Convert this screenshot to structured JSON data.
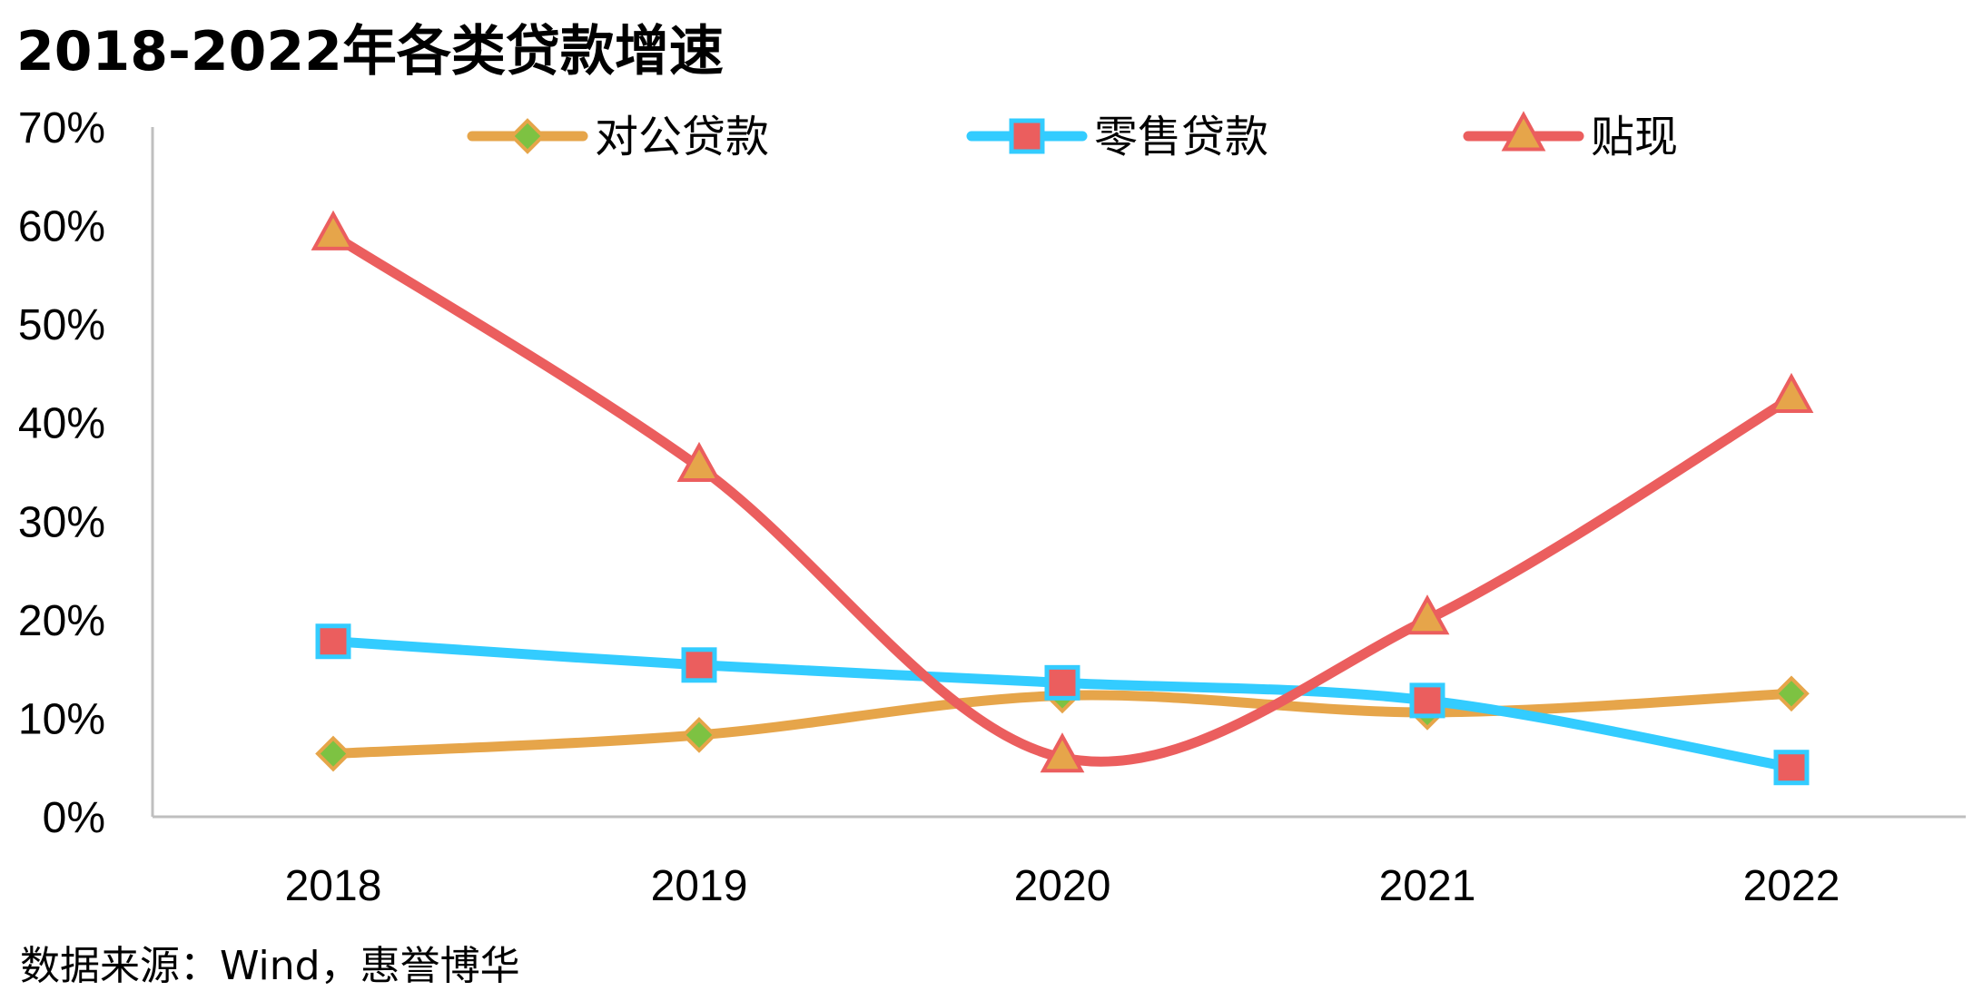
{
  "chart_data": {
    "type": "line",
    "title": "2018-2022年各类贷款增速",
    "categories": [
      "2018",
      "2019",
      "2020",
      "2021",
      "2022"
    ],
    "ylim": [
      0,
      0.7
    ],
    "yticks": [
      "0%",
      "10%",
      "20%",
      "30%",
      "40%",
      "50%",
      "60%",
      "70%"
    ],
    "grid": false,
    "legend_position": "top",
    "series": [
      {
        "name": "对公贷款",
        "values": [
          0.064,
          0.083,
          0.123,
          0.106,
          0.125
        ],
        "line_color": "#E6A54A",
        "marker": "diamond",
        "marker_fill": "#7DC242",
        "marker_stroke": "#E6A54A"
      },
      {
        "name": "零售贷款",
        "values": [
          0.178,
          0.154,
          0.136,
          0.118,
          0.05
        ],
        "line_color": "#33CCFF",
        "marker": "square",
        "marker_fill": "#EB5E5E",
        "marker_stroke": "#33CCFF"
      },
      {
        "name": "贴现",
        "values": [
          0.59,
          0.355,
          0.06,
          0.2,
          0.425
        ],
        "line_color": "#EB5E5E",
        "marker": "triangle",
        "marker_fill": "#E6A54A",
        "marker_stroke": "#EB5E5E"
      }
    ]
  },
  "footer": {
    "source": "数据来源：Wind，惠誉博华"
  }
}
